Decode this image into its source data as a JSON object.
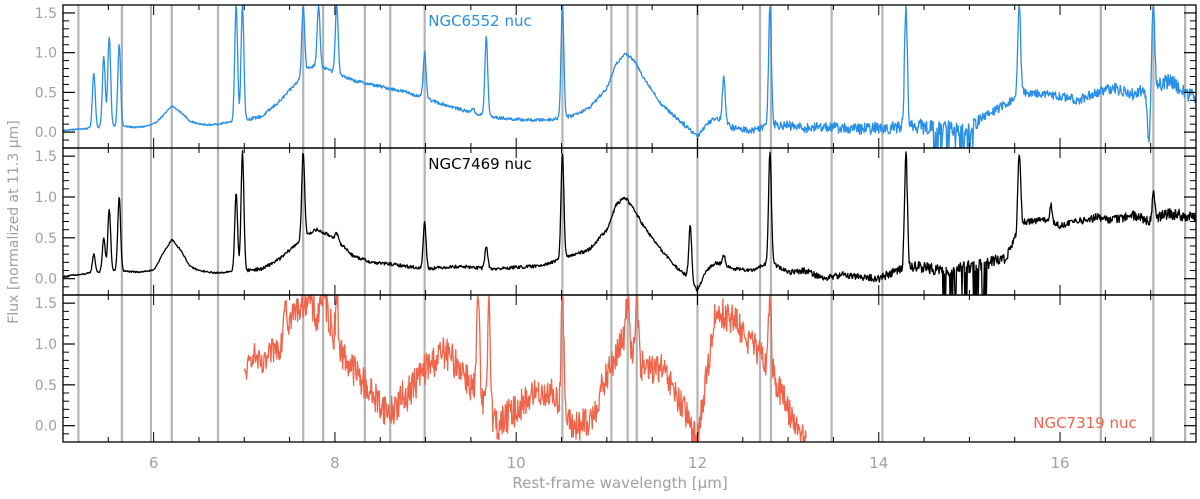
{
  "chart_data": {
    "type": "line",
    "xlabel": "Rest-frame wavelength [μm]",
    "ylabel": "Flux [normalized at 11.3 μm]",
    "xlim": [
      5.0,
      17.5
    ],
    "ylim": [
      -0.2,
      1.6
    ],
    "x_ticks": [
      6,
      8,
      10,
      12,
      14,
      16
    ],
    "y_ticks": [
      0.0,
      0.5,
      1.0,
      1.5
    ],
    "y_tick_labels": [
      "0.0",
      "0.5",
      "1.0",
      "1.5"
    ],
    "reference_lines_um": [
      5.17,
      5.65,
      5.97,
      6.2,
      6.71,
      7.65,
      7.87,
      8.33,
      8.61,
      8.99,
      10.51,
      11.05,
      11.23,
      11.33,
      12.0,
      12.69,
      12.81,
      13.48,
      14.04,
      16.45,
      17.03,
      17.38
    ],
    "colors": {
      "NGC6552": "#2a8fe6",
      "NGC7469": "#000000",
      "NGC7319": "#f0644a",
      "grid_lines": "#b4b4b4",
      "axis_text": "#a0a0a0"
    },
    "panels": [
      {
        "id": "NGC6552",
        "label": "NGC6552 nuc",
        "label_position": "top-center",
        "color": "#2a8fe6",
        "series": [
          {
            "x": [
              5.0,
              5.1,
              5.2,
              5.3,
              5.4,
              5.5,
              5.6,
              5.7,
              5.8,
              5.9,
              6.0,
              6.1,
              6.2,
              6.3,
              6.4,
              6.5,
              6.6,
              6.7,
              6.8,
              6.9,
              7.0,
              7.2,
              7.4,
              7.6,
              7.7,
              7.8,
              8.0,
              8.2,
              8.4,
              8.6,
              8.8,
              9.0,
              9.2,
              9.4,
              9.6,
              9.8,
              10.0,
              10.2,
              10.4,
              10.6,
              10.8,
              11.0,
              11.1,
              11.2,
              11.3,
              11.4,
              11.6,
              11.8,
              11.9,
              12.0,
              12.1,
              12.2,
              12.4,
              12.6,
              12.8,
              13.0,
              13.2,
              13.4,
              13.6,
              13.8,
              14.0,
              14.2,
              14.4,
              14.6,
              14.8,
              15.0,
              15.2,
              15.4,
              15.6,
              15.8,
              16.0,
              16.2,
              16.4,
              16.6,
              16.8,
              17.0,
              17.2,
              17.5
            ],
            "y": [
              0.02,
              0.03,
              0.04,
              0.05,
              0.06,
              0.07,
              0.08,
              0.07,
              0.06,
              0.07,
              0.1,
              0.2,
              0.33,
              0.25,
              0.14,
              0.1,
              0.09,
              0.1,
              0.12,
              0.13,
              0.15,
              0.2,
              0.4,
              0.65,
              0.8,
              0.85,
              0.75,
              0.65,
              0.6,
              0.55,
              0.5,
              0.42,
              0.35,
              0.28,
              0.22,
              0.18,
              0.16,
              0.15,
              0.16,
              0.2,
              0.3,
              0.55,
              0.85,
              1.0,
              0.9,
              0.7,
              0.35,
              0.15,
              0.05,
              -0.05,
              0.1,
              0.18,
              0.05,
              0.02,
              0.1,
              0.08,
              0.05,
              0.07,
              0.05,
              0.04,
              0.05,
              0.06,
              0.08,
              0.05,
              0.04,
              0.05,
              0.22,
              0.35,
              0.5,
              0.48,
              0.45,
              0.4,
              0.5,
              0.55,
              0.48,
              0.55,
              0.65,
              0.42
            ],
            "noise": [
              0.01,
              0.01,
              0.01,
              0.01,
              0.01,
              0.01,
              0.01,
              0.01,
              0.01,
              0.01,
              0.01,
              0.01,
              0.01,
              0.01,
              0.01,
              0.01,
              0.01,
              0.01,
              0.01,
              0.01,
              0.02,
              0.02,
              0.02,
              0.02,
              0.02,
              0.02,
              0.02,
              0.02,
              0.02,
              0.02,
              0.02,
              0.02,
              0.02,
              0.02,
              0.02,
              0.02,
              0.02,
              0.02,
              0.02,
              0.02,
              0.02,
              0.02,
              0.02,
              0.02,
              0.02,
              0.02,
              0.02,
              0.03,
              0.03,
              0.03,
              0.03,
              0.03,
              0.04,
              0.04,
              0.05,
              0.06,
              0.06,
              0.06,
              0.07,
              0.07,
              0.08,
              0.08,
              0.09,
              0.1,
              0.1,
              0.1,
              0.06,
              0.05,
              0.05,
              0.05,
              0.06,
              0.06,
              0.07,
              0.07,
              0.08,
              0.09,
              0.1,
              0.1
            ],
            "lines": [
              [
                5.34,
                0.75
              ],
              [
                5.45,
                0.95
              ],
              [
                5.51,
                1.2
              ],
              [
                5.62,
                1.1
              ],
              [
                6.91,
                1.6
              ],
              [
                6.98,
                1.6
              ],
              [
                7.65,
                1.6
              ],
              [
                7.82,
                1.6
              ],
              [
                8.02,
                1.6
              ],
              [
                8.99,
                1.0
              ],
              [
                9.52,
                0.3
              ],
              [
                9.67,
                1.2
              ],
              [
                10.51,
                1.6
              ],
              [
                12.29,
                0.7
              ],
              [
                12.8,
                1.6
              ],
              [
                14.3,
                1.6
              ],
              [
                15.55,
                1.6
              ],
              [
                17.03,
                1.6
              ]
            ],
            "dips": [
              [
                16.98,
                -0.15
              ]
            ],
            "clip_below": [
              15.1
            ]
          }
        ]
      },
      {
        "id": "NGC7469",
        "label": "NGC7469 nuc",
        "label_position": "top-center",
        "color": "#000000",
        "series": [
          {
            "x": [
              5.0,
              5.1,
              5.2,
              5.3,
              5.4,
              5.5,
              5.6,
              5.7,
              5.8,
              5.9,
              6.0,
              6.1,
              6.2,
              6.3,
              6.4,
              6.5,
              6.6,
              6.7,
              6.8,
              6.9,
              7.0,
              7.2,
              7.4,
              7.6,
              7.7,
              7.8,
              8.0,
              8.2,
              8.4,
              8.6,
              8.8,
              9.0,
              9.2,
              9.4,
              9.6,
              9.8,
              10.0,
              10.2,
              10.4,
              10.6,
              10.8,
              11.0,
              11.1,
              11.2,
              11.3,
              11.4,
              11.6,
              11.8,
              11.9,
              12.0,
              12.1,
              12.2,
              12.4,
              12.6,
              12.8,
              13.0,
              13.2,
              13.4,
              13.6,
              13.8,
              14.0,
              14.2,
              14.4,
              14.6,
              14.8,
              15.0,
              15.2,
              15.4,
              15.6,
              15.8,
              16.0,
              16.2,
              16.4,
              16.6,
              16.8,
              17.0,
              17.2,
              17.5
            ],
            "y": [
              0.02,
              0.04,
              0.05,
              0.07,
              0.08,
              0.09,
              0.1,
              0.09,
              0.08,
              0.09,
              0.1,
              0.3,
              0.48,
              0.35,
              0.15,
              0.1,
              0.08,
              0.07,
              0.08,
              0.09,
              0.1,
              0.12,
              0.25,
              0.45,
              0.55,
              0.6,
              0.5,
              0.28,
              0.2,
              0.18,
              0.15,
              0.12,
              0.14,
              0.15,
              0.13,
              0.12,
              0.14,
              0.15,
              0.2,
              0.28,
              0.35,
              0.6,
              0.9,
              1.0,
              0.85,
              0.65,
              0.35,
              0.1,
              0.02,
              -0.15,
              0.1,
              0.2,
              0.12,
              0.1,
              0.2,
              0.08,
              0.1,
              0.0,
              0.05,
              0.02,
              0.0,
              0.1,
              0.15,
              0.12,
              0.1,
              0.15,
              0.2,
              0.25,
              0.7,
              0.72,
              0.65,
              0.7,
              0.75,
              0.72,
              0.78,
              0.7,
              0.8,
              0.75
            ],
            "noise": [
              0.01,
              0.01,
              0.01,
              0.01,
              0.01,
              0.01,
              0.01,
              0.01,
              0.01,
              0.01,
              0.01,
              0.01,
              0.01,
              0.01,
              0.01,
              0.01,
              0.01,
              0.01,
              0.01,
              0.01,
              0.02,
              0.02,
              0.02,
              0.02,
              0.02,
              0.02,
              0.02,
              0.02,
              0.02,
              0.02,
              0.02,
              0.02,
              0.02,
              0.02,
              0.02,
              0.02,
              0.02,
              0.02,
              0.02,
              0.02,
              0.02,
              0.02,
              0.02,
              0.02,
              0.02,
              0.02,
              0.02,
              0.02,
              0.02,
              0.02,
              0.02,
              0.02,
              0.02,
              0.02,
              0.02,
              0.03,
              0.04,
              0.04,
              0.04,
              0.04,
              0.05,
              0.05,
              0.06,
              0.07,
              0.08,
              0.08,
              0.08,
              0.06,
              0.04,
              0.04,
              0.04,
              0.04,
              0.05,
              0.05,
              0.06,
              0.06,
              0.07,
              0.07
            ],
            "lines": [
              [
                5.34,
                0.3
              ],
              [
                5.45,
                0.5
              ],
              [
                5.51,
                0.85
              ],
              [
                5.62,
                1.0
              ],
              [
                6.91,
                1.05
              ],
              [
                6.98,
                1.55
              ],
              [
                7.65,
                1.55
              ],
              [
                8.02,
                0.55
              ],
              [
                8.99,
                0.7
              ],
              [
                9.67,
                0.4
              ],
              [
                10.51,
                1.55
              ],
              [
                11.92,
                0.65
              ],
              [
                12.29,
                0.3
              ],
              [
                12.8,
                1.55
              ],
              [
                14.3,
                1.55
              ],
              [
                15.55,
                1.55
              ],
              [
                15.9,
                0.9
              ],
              [
                17.03,
                1.05
              ]
            ],
            "dips": [],
            "clip_below": [
              15.2
            ]
          }
        ]
      },
      {
        "id": "NGC7319",
        "label": "NGC7319 nuc",
        "label_position": "bottom-right",
        "color": "#f0644a",
        "series": [
          {
            "x": [
              7.0,
              7.1,
              7.2,
              7.3,
              7.4,
              7.5,
              7.6,
              7.7,
              7.8,
              7.9,
              8.0,
              8.2,
              8.4,
              8.6,
              8.8,
              9.0,
              9.2,
              9.4,
              9.6,
              9.8,
              10.0,
              10.1,
              10.2,
              10.4,
              10.6,
              10.8,
              11.0,
              11.2,
              11.4,
              11.6,
              11.8,
              12.0,
              12.2,
              12.4,
              12.6,
              12.8,
              13.0,
              13.2
            ],
            "y": [
              0.6,
              0.9,
              0.7,
              0.9,
              1.0,
              1.3,
              1.45,
              1.6,
              1.3,
              1.5,
              1.0,
              0.7,
              0.4,
              0.15,
              0.4,
              0.7,
              0.9,
              0.7,
              0.3,
              0.0,
              0.2,
              0.3,
              0.4,
              0.4,
              0.0,
              0.0,
              0.6,
              1.1,
              0.7,
              0.7,
              0.3,
              -0.2,
              1.4,
              1.3,
              1.0,
              0.7,
              0.2,
              -0.2
            ],
            "noise": [
              0.12,
              0.14,
              0.15,
              0.16,
              0.18,
              0.2,
              0.2,
              0.22,
              0.22,
              0.22,
              0.22,
              0.2,
              0.2,
              0.2,
              0.22,
              0.2,
              0.2,
              0.2,
              0.22,
              0.22,
              0.2,
              0.18,
              0.18,
              0.18,
              0.2,
              0.22,
              0.2,
              0.2,
              0.2,
              0.18,
              0.2,
              0.2,
              0.2,
              0.2,
              0.18,
              0.18,
              0.18,
              0.18
            ],
            "lines": [
              [
                7.45,
                1.6
              ],
              [
                7.7,
                1.6
              ],
              [
                7.85,
                1.6
              ],
              [
                8.02,
                1.6
              ],
              [
                9.58,
                1.6
              ],
              [
                9.7,
                1.6
              ],
              [
                10.51,
                1.6
              ],
              [
                11.23,
                1.6
              ],
              [
                11.33,
                1.6
              ],
              [
                12.8,
                1.6
              ]
            ],
            "dips": [],
            "clip_below": []
          }
        ]
      }
    ]
  }
}
